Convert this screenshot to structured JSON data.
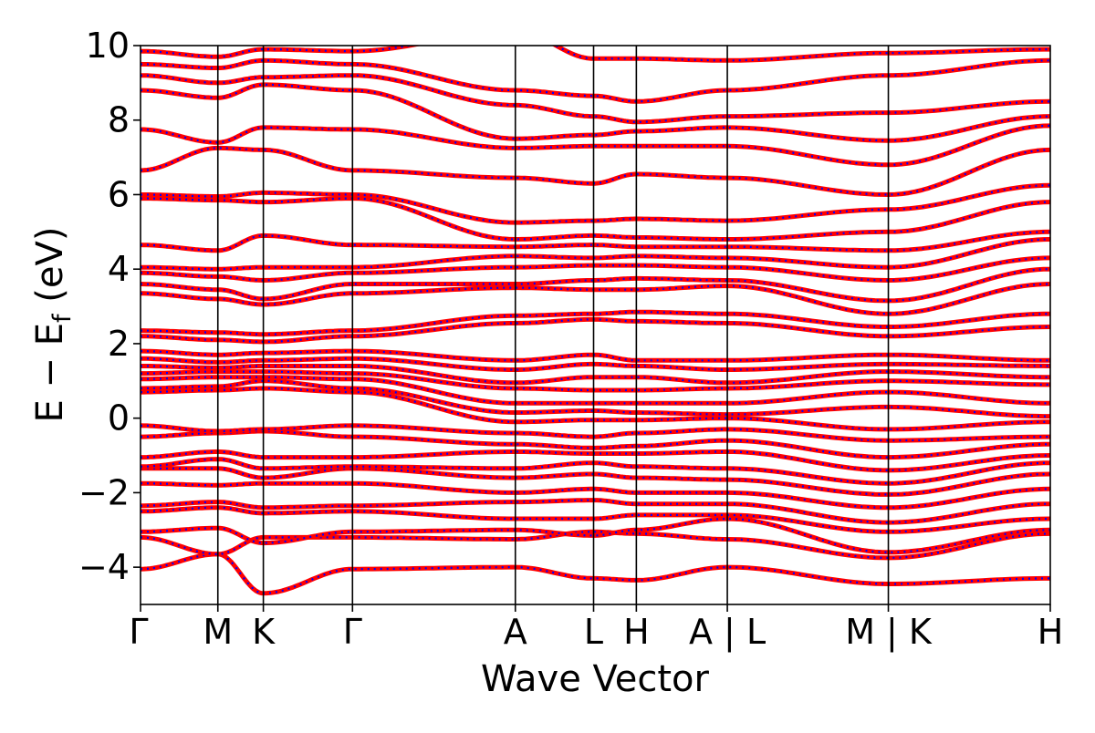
{
  "chart_data": {
    "type": "line",
    "xlabel": "Wave Vector",
    "ylabel_main": "E − E",
    "ylabel_sub": "f",
    "ylabel_unit": " (eV)",
    "ylim": [
      -5,
      10
    ],
    "yticks": [
      -4,
      -2,
      0,
      2,
      4,
      6,
      8,
      10
    ],
    "ytick_labels": [
      "−4",
      "−2",
      "0",
      "2",
      "4",
      "6",
      "8",
      "10"
    ],
    "kpath": [
      0,
      0.85,
      1.35,
      2.33,
      4.12,
      4.98,
      5.45,
      6.45,
      8.22,
      10.0
    ],
    "kpoint_labels": [
      "Γ",
      "M",
      "K",
      "Γ",
      "A",
      "L",
      "H",
      "A | L",
      "M | K",
      "H"
    ],
    "segment_breaks": [
      6.45,
      8.22
    ],
    "grid": false,
    "legend": "none",
    "line_styles": [
      {
        "color": "#ff0000",
        "style": "solid",
        "width": 5
      },
      {
        "color": "#0000ff",
        "style": "dotted",
        "width": 2.2
      }
    ],
    "bands_at_kpoints": [
      [
        -4.05,
        -3.65,
        -4.7,
        -4.05,
        -4.0,
        -4.3,
        -4.35,
        -4.0,
        -4.45,
        -4.3
      ],
      [
        -3.2,
        -3.65,
        -3.2,
        -3.2,
        -3.25,
        -3.05,
        -3.1,
        -3.25,
        -3.75,
        -3.1
      ],
      [
        -3.05,
        -2.95,
        -3.35,
        -3.05,
        -3.0,
        -3.15,
        -3.0,
        -2.7,
        -3.6,
        -3.0
      ],
      [
        -2.5,
        -2.4,
        -2.55,
        -2.5,
        -2.7,
        -2.7,
        -2.6,
        -2.6,
        -3.05,
        -2.7
      ],
      [
        -2.35,
        -2.25,
        -2.4,
        -2.35,
        -2.25,
        -2.2,
        -2.3,
        -2.3,
        -2.8,
        -2.3
      ],
      [
        -1.75,
        -1.8,
        -1.75,
        -1.75,
        -2.0,
        -1.9,
        -2.0,
        -2.0,
        -2.4,
        -1.9
      ],
      [
        -1.35,
        -1.35,
        -1.6,
        -1.35,
        -1.6,
        -1.5,
        -1.6,
        -1.65,
        -2.05,
        -1.5
      ],
      [
        -1.3,
        -1.1,
        -1.35,
        -1.3,
        -1.35,
        -1.2,
        -1.3,
        -1.35,
        -1.75,
        -1.2
      ],
      [
        -1.05,
        -0.9,
        -1.05,
        -1.05,
        -0.9,
        -0.95,
        -0.95,
        -0.9,
        -1.4,
        -1.0
      ],
      [
        -0.5,
        -0.4,
        -0.35,
        -0.5,
        -0.7,
        -0.8,
        -0.75,
        -0.6,
        -1.05,
        -0.7
      ],
      [
        -0.2,
        -0.35,
        -0.3,
        -0.2,
        -0.4,
        -0.5,
        -0.4,
        -0.3,
        -0.6,
        -0.5
      ],
      [
        0.7,
        0.75,
        0.8,
        0.7,
        -0.1,
        -0.05,
        -0.05,
        0.0,
        -0.3,
        -0.1
      ],
      [
        0.8,
        0.85,
        1.0,
        0.8,
        0.15,
        0.2,
        0.15,
        0.1,
        0.3,
        0.05
      ],
      [
        1.05,
        1.1,
        1.1,
        1.05,
        0.4,
        0.4,
        0.4,
        0.4,
        0.7,
        0.4
      ],
      [
        1.2,
        1.25,
        1.25,
        1.2,
        0.8,
        0.75,
        0.75,
        0.8,
        1.0,
        0.9
      ],
      [
        1.4,
        1.35,
        1.4,
        1.4,
        0.95,
        1.1,
        1.1,
        0.95,
        1.25,
        1.1
      ],
      [
        1.6,
        1.5,
        1.55,
        1.6,
        1.3,
        1.45,
        1.4,
        1.3,
        1.45,
        1.4
      ],
      [
        1.8,
        1.7,
        1.75,
        1.8,
        1.55,
        1.7,
        1.55,
        1.55,
        1.7,
        1.55
      ],
      [
        2.2,
        2.1,
        2.05,
        2.2,
        2.55,
        2.65,
        2.6,
        2.55,
        2.2,
        2.45
      ],
      [
        2.35,
        2.3,
        2.25,
        2.35,
        2.75,
        2.8,
        2.85,
        2.8,
        2.45,
        2.8
      ],
      [
        3.35,
        3.2,
        3.05,
        3.35,
        3.5,
        3.45,
        3.45,
        3.55,
        2.8,
        3.6
      ],
      [
        3.6,
        3.45,
        3.2,
        3.6,
        3.6,
        3.7,
        3.75,
        3.7,
        3.15,
        4.0
      ],
      [
        3.9,
        3.8,
        3.7,
        3.9,
        4.05,
        4.1,
        4.1,
        4.05,
        3.7,
        4.3
      ],
      [
        4.05,
        4.0,
        4.05,
        4.05,
        4.35,
        4.3,
        4.35,
        4.3,
        4.05,
        4.8
      ],
      [
        4.65,
        4.5,
        4.9,
        4.65,
        4.6,
        4.65,
        4.6,
        4.6,
        4.5,
        5.0
      ],
      [
        5.9,
        5.85,
        5.8,
        5.9,
        4.8,
        4.9,
        4.85,
        4.8,
        5.0,
        5.8
      ],
      [
        6.0,
        5.95,
        6.05,
        6.0,
        5.25,
        5.3,
        5.35,
        5.3,
        5.6,
        6.25
      ],
      [
        6.65,
        7.25,
        7.2,
        6.65,
        6.45,
        6.3,
        6.55,
        6.45,
        6.0,
        7.2
      ],
      [
        7.75,
        7.4,
        7.8,
        7.75,
        7.25,
        7.3,
        7.3,
        7.3,
        6.8,
        7.85
      ],
      [
        8.8,
        8.6,
        8.95,
        8.8,
        7.5,
        7.6,
        7.7,
        7.8,
        7.45,
        8.1
      ],
      [
        9.2,
        9.0,
        9.15,
        9.2,
        8.4,
        8.1,
        7.95,
        8.1,
        8.2,
        8.5
      ],
      [
        9.5,
        9.4,
        9.6,
        9.5,
        8.8,
        8.65,
        8.5,
        8.8,
        9.2,
        9.6
      ],
      [
        9.85,
        9.7,
        9.9,
        9.85,
        10.4,
        9.65,
        9.65,
        9.6,
        9.8,
        9.9
      ]
    ]
  }
}
